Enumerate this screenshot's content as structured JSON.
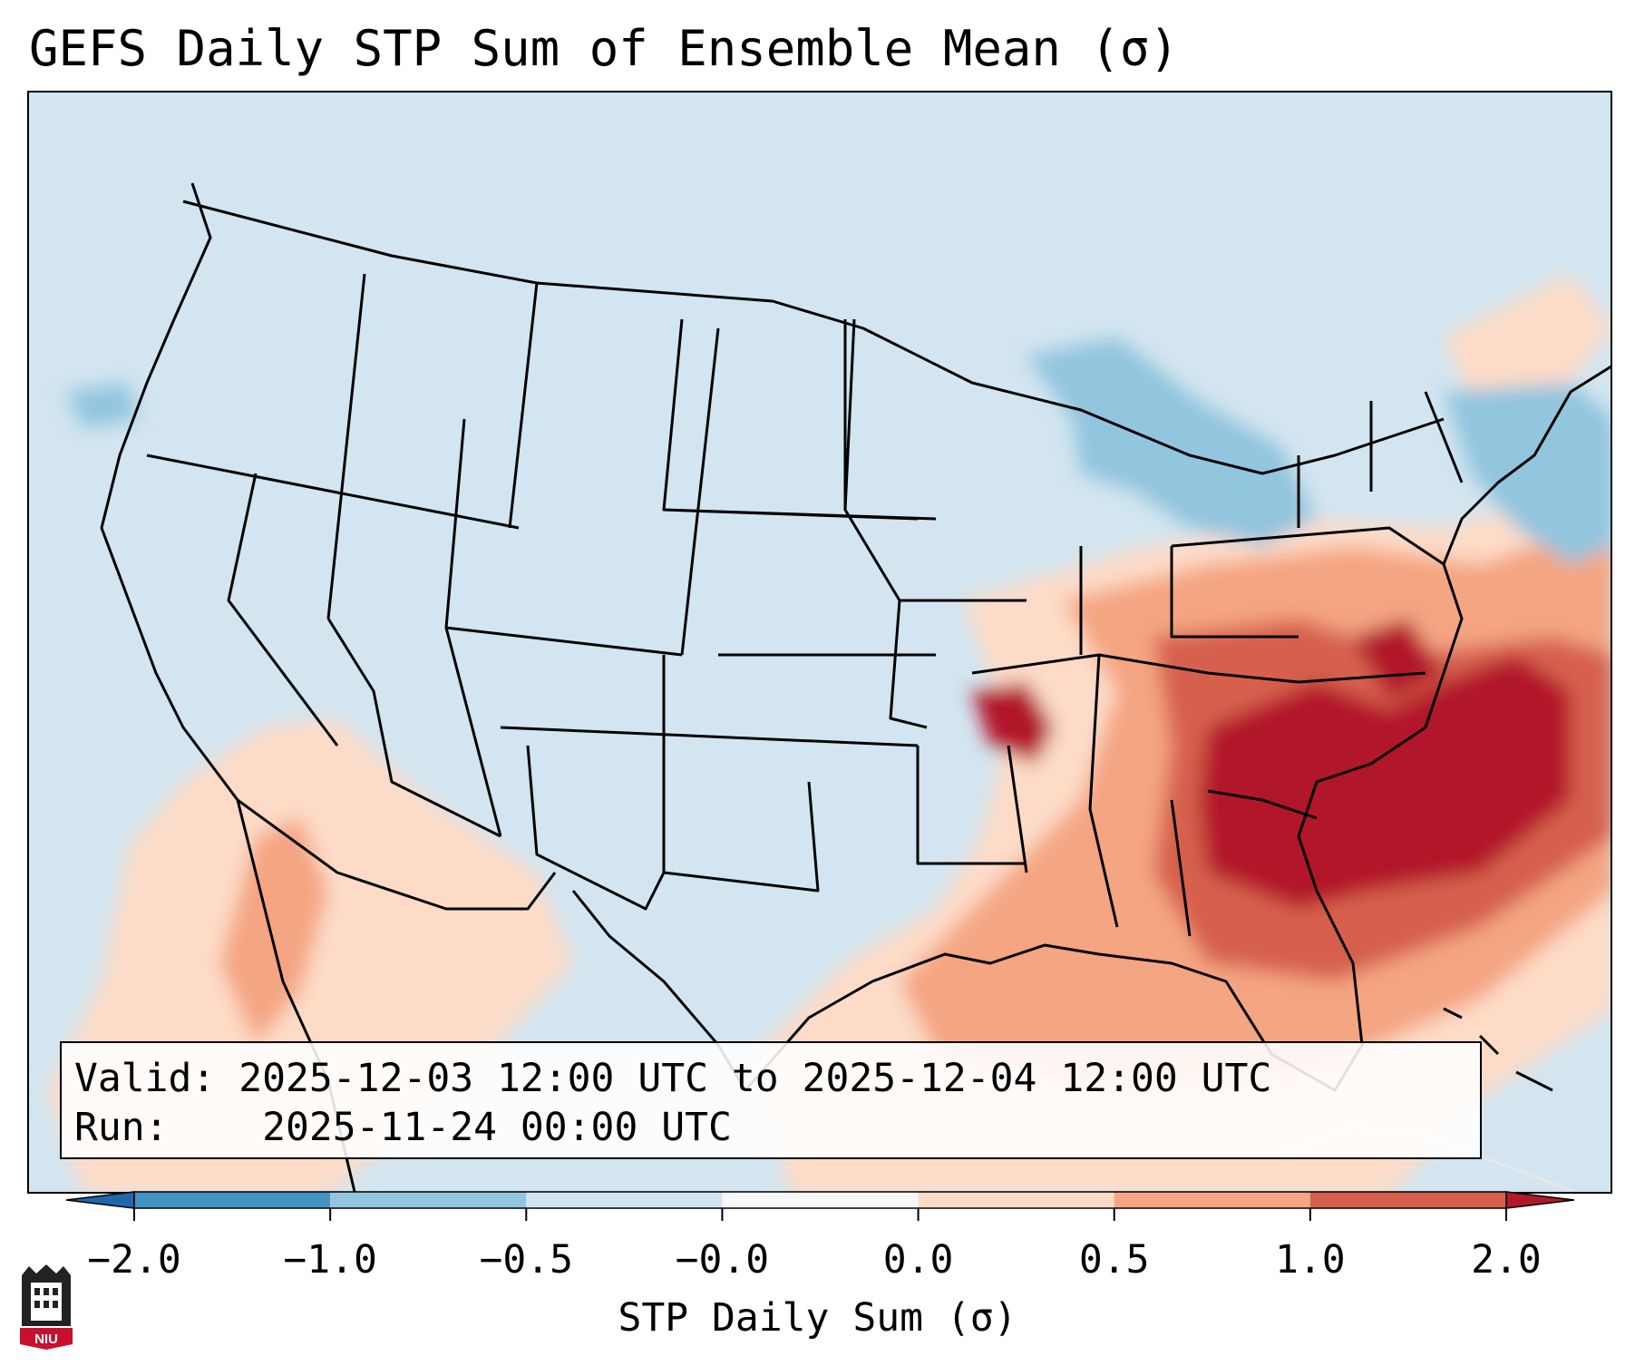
{
  "title": "GEFS Daily STP Sum of Ensemble Mean (σ)",
  "info": {
    "valid_label": "Valid:",
    "valid_value": "2025-12-03 12:00 UTC to 2025-12-04 12:00 UTC",
    "run_label": "Run:",
    "run_value": "2025-11-24 00:00 UTC"
  },
  "colorbar": {
    "label": "STP Daily Sum (σ)",
    "ticks": [
      "−2.0",
      "−1.0",
      "−0.5",
      "−0.0",
      "0.0",
      "0.5",
      "1.0",
      "2.0"
    ],
    "colors": [
      "#4393c3",
      "#92c5de",
      "#d1e5f0",
      "#f7f7f7",
      "#fddbc7",
      "#f4a582",
      "#d6604d"
    ],
    "extend_low_color": "#2166ac",
    "extend_high_color": "#b2182b"
  },
  "map": {
    "ocean_color": "#d2e5f0",
    "anomaly_colors": {
      "light_red": "#fddbc7",
      "mid_red": "#f4a582",
      "red": "#d6604d",
      "dark_red": "#b2182b",
      "light_blue": "#92c5de"
    }
  },
  "logo": {
    "text": "NIU",
    "color": "#c8102e"
  }
}
